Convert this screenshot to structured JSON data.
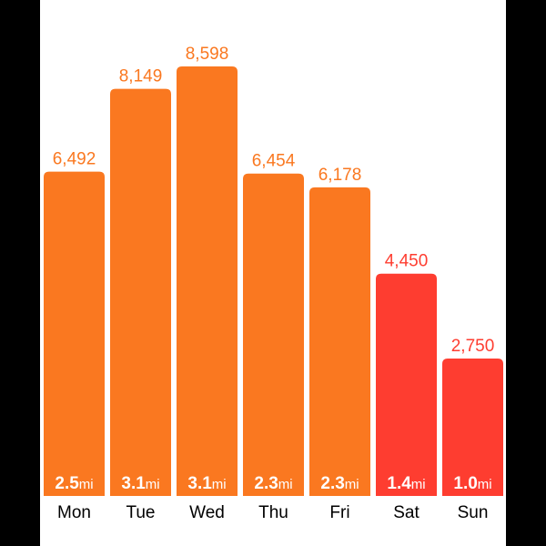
{
  "colors": {
    "orange": "#fa7820",
    "red": "#fe3d30",
    "background": "#ffffff",
    "frame": "#000000"
  },
  "chart_data": {
    "type": "bar",
    "categories": [
      "Mon",
      "Tue",
      "Wed",
      "Thu",
      "Fri",
      "Sat",
      "Sun"
    ],
    "series": [
      {
        "values": [
          6492,
          8149,
          8598,
          6454,
          6178,
          4450,
          2750
        ],
        "value_labels": [
          "6,492",
          "8,149",
          "8,598",
          "6,454",
          "6,178",
          "4,450",
          "2,750"
        ],
        "distance": [
          "2.5",
          "3.1",
          "3.1",
          "2.3",
          "2.3",
          "1.4",
          "1.0"
        ],
        "distance_unit": "mi",
        "bar_colors": [
          "orange",
          "orange",
          "orange",
          "orange",
          "orange",
          "red",
          "red"
        ]
      }
    ],
    "ylim": [
      0,
      8598
    ],
    "grid": false,
    "legend": "none"
  }
}
